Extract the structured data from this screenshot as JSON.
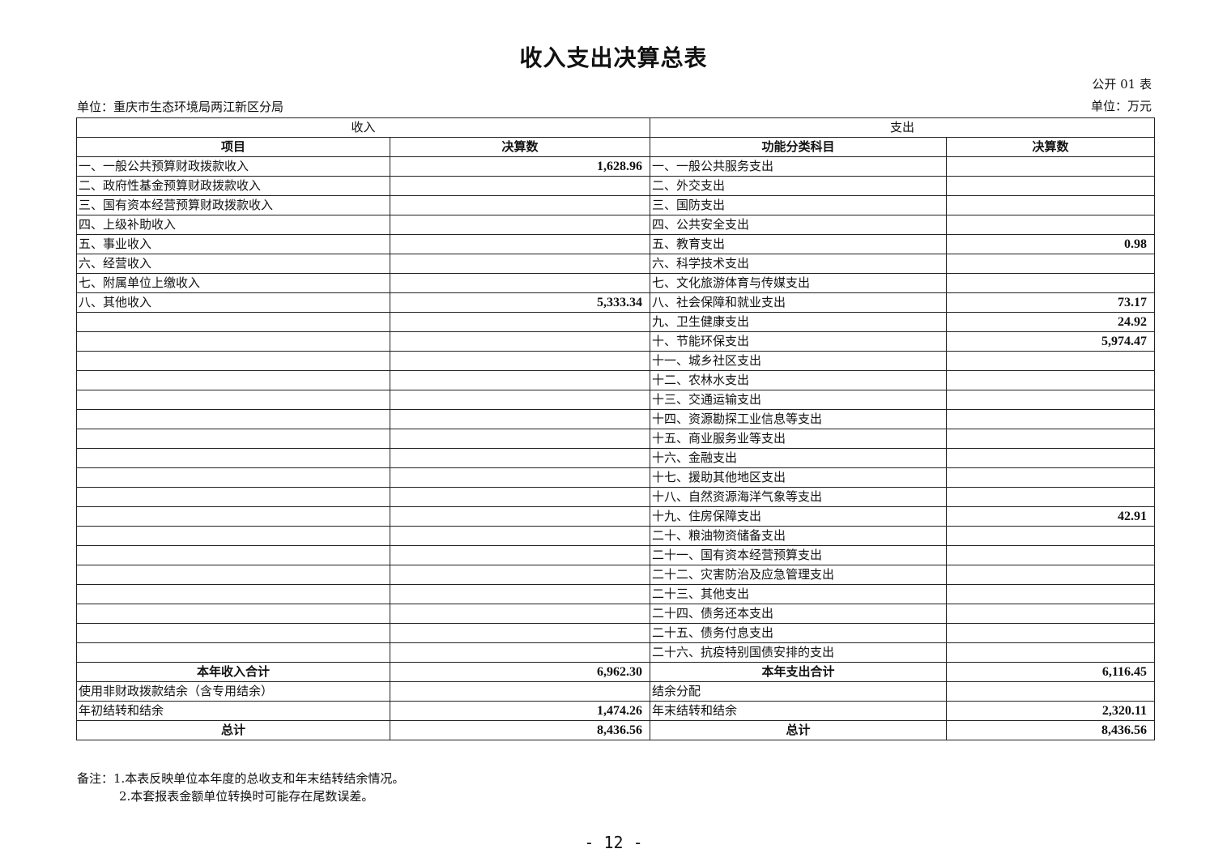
{
  "title": "收入支出决算总表",
  "table_code": "公开 01 表",
  "unit_org": "单位：重庆市生态环境局两江新区分局",
  "unit_currency": "单位：万元",
  "headers": {
    "income": "收入",
    "expense": "支出",
    "income_item": "项目",
    "income_amount": "决算数",
    "expense_item": "功能分类科目",
    "expense_amount": "决算数"
  },
  "rows": [
    {
      "income_item": "一、一般公共预算财政拨款收入",
      "income_amount": "1,628.96",
      "expense_item": "一、一般公共服务支出",
      "expense_amount": ""
    },
    {
      "income_item": "二、政府性基金预算财政拨款收入",
      "income_amount": "",
      "expense_item": "二、外交支出",
      "expense_amount": ""
    },
    {
      "income_item": "三、国有资本经营预算财政拨款收入",
      "income_amount": "",
      "expense_item": "三、国防支出",
      "expense_amount": ""
    },
    {
      "income_item": "四、上级补助收入",
      "income_amount": "",
      "expense_item": "四、公共安全支出",
      "expense_amount": ""
    },
    {
      "income_item": "五、事业收入",
      "income_amount": "",
      "expense_item": "五、教育支出",
      "expense_amount": "0.98"
    },
    {
      "income_item": "六、经营收入",
      "income_amount": "",
      "expense_item": "六、科学技术支出",
      "expense_amount": ""
    },
    {
      "income_item": "七、附属单位上缴收入",
      "income_amount": "",
      "expense_item": "七、文化旅游体育与传媒支出",
      "expense_amount": ""
    },
    {
      "income_item": "八、其他收入",
      "income_amount": "5,333.34",
      "expense_item": "八、社会保障和就业支出",
      "expense_amount": "73.17"
    },
    {
      "income_item": "",
      "income_amount": "",
      "expense_item": "九、卫生健康支出",
      "expense_amount": "24.92"
    },
    {
      "income_item": "",
      "income_amount": "",
      "expense_item": "十、节能环保支出",
      "expense_amount": "5,974.47"
    },
    {
      "income_item": "",
      "income_amount": "",
      "expense_item": "十一、城乡社区支出",
      "expense_amount": ""
    },
    {
      "income_item": "",
      "income_amount": "",
      "expense_item": "十二、农林水支出",
      "expense_amount": ""
    },
    {
      "income_item": "",
      "income_amount": "",
      "expense_item": "十三、交通运输支出",
      "expense_amount": ""
    },
    {
      "income_item": "",
      "income_amount": "",
      "expense_item": "十四、资源勘探工业信息等支出",
      "expense_amount": ""
    },
    {
      "income_item": "",
      "income_amount": "",
      "expense_item": "十五、商业服务业等支出",
      "expense_amount": ""
    },
    {
      "income_item": "",
      "income_amount": "",
      "expense_item": "十六、金融支出",
      "expense_amount": ""
    },
    {
      "income_item": "",
      "income_amount": "",
      "expense_item": "十七、援助其他地区支出",
      "expense_amount": ""
    },
    {
      "income_item": "",
      "income_amount": "",
      "expense_item": "十八、自然资源海洋气象等支出",
      "expense_amount": ""
    },
    {
      "income_item": "",
      "income_amount": "",
      "expense_item": "十九、住房保障支出",
      "expense_amount": "42.91"
    },
    {
      "income_item": "",
      "income_amount": "",
      "expense_item": "二十、粮油物资储备支出",
      "expense_amount": ""
    },
    {
      "income_item": "",
      "income_amount": "",
      "expense_item": "二十一、国有资本经营预算支出",
      "expense_amount": ""
    },
    {
      "income_item": "",
      "income_amount": "",
      "expense_item": "二十二、灾害防治及应急管理支出",
      "expense_amount": ""
    },
    {
      "income_item": "",
      "income_amount": "",
      "expense_item": "二十三、其他支出",
      "expense_amount": ""
    },
    {
      "income_item": "",
      "income_amount": "",
      "expense_item": "二十四、债务还本支出",
      "expense_amount": ""
    },
    {
      "income_item": "",
      "income_amount": "",
      "expense_item": "二十五、债务付息支出",
      "expense_amount": ""
    },
    {
      "income_item": "",
      "income_amount": "",
      "expense_item": "二十六、抗疫特别国债安排的支出",
      "expense_amount": ""
    }
  ],
  "summary": [
    {
      "income_item": "本年收入合计",
      "income_amount": "6,962.30",
      "expense_item": "本年支出合计",
      "expense_amount": "6,116.45",
      "bold": true
    },
    {
      "income_item": "使用非财政拨款结余（含专用结余）",
      "income_amount": "",
      "expense_item": "结余分配",
      "expense_amount": "",
      "bold": false
    },
    {
      "income_item": "年初结转和结余",
      "income_amount": "1,474.26",
      "expense_item": "年末结转和结余",
      "expense_amount": "2,320.11",
      "bold": false
    },
    {
      "income_item": "总计",
      "income_amount": "8,436.56",
      "expense_item": "总计",
      "expense_amount": "8,436.56",
      "bold": true
    }
  ],
  "notes": {
    "line1": "备注：1.本表反映单位本年度的总收支和年末结转结余情况。",
    "line2": "2.本套报表金额单位转换时可能存在尾数误差。"
  },
  "page_number": "- 12 -"
}
